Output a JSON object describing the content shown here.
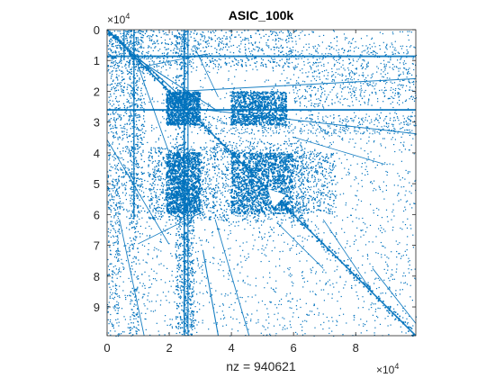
{
  "chart_data": {
    "type": "scatter",
    "title": "ASIC_100k",
    "xlabel": "nz = 940621",
    "ylabel": "",
    "xlim": [
      0,
      99340
    ],
    "ylim": [
      0,
      99340
    ],
    "y_reversed": true,
    "marker_color": "#0072BD",
    "x_ticks": [
      0,
      20000,
      40000,
      60000,
      80000
    ],
    "x_tick_labels": [
      "0",
      "2",
      "4",
      "6",
      "8"
    ],
    "y_ticks": [
      0,
      10000,
      20000,
      30000,
      40000,
      50000,
      60000,
      70000,
      80000,
      90000
    ],
    "y_tick_labels": [
      "0",
      "1",
      "2",
      "3",
      "4",
      "5",
      "6",
      "7",
      "8",
      "9"
    ],
    "x_exponent_label": {
      "base": "×10",
      "power": "4"
    },
    "y_exponent_label": {
      "base": "×10",
      "power": "4"
    },
    "nz": 940621
  }
}
